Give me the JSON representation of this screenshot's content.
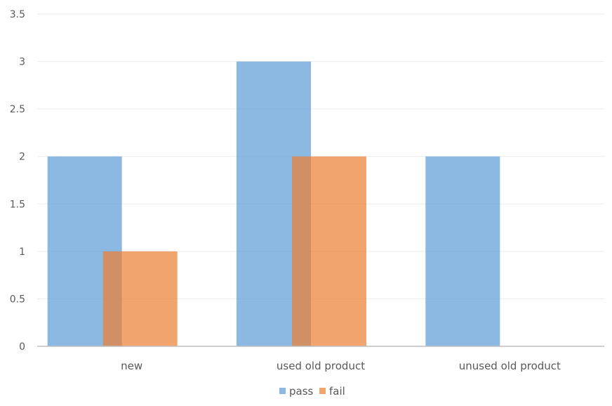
{
  "chart_data": {
    "type": "bar",
    "categories": [
      "new",
      "used old product",
      "unused old product"
    ],
    "series": [
      {
        "name": "pass",
        "values": [
          2,
          3,
          2
        ],
        "color": "#5b9bd5"
      },
      {
        "name": "fail",
        "values": [
          1,
          2,
          0
        ],
        "color": "#ed7d31"
      }
    ],
    "title": "",
    "xlabel": "",
    "ylabel": "",
    "ylim": [
      0,
      3.5
    ],
    "yticks": [
      "0",
      "0.5",
      "1",
      "1.5",
      "2",
      "2.5",
      "3",
      "3.5"
    ],
    "grid": true,
    "legend": "bottom-center",
    "bar_opacity": 0.7
  }
}
